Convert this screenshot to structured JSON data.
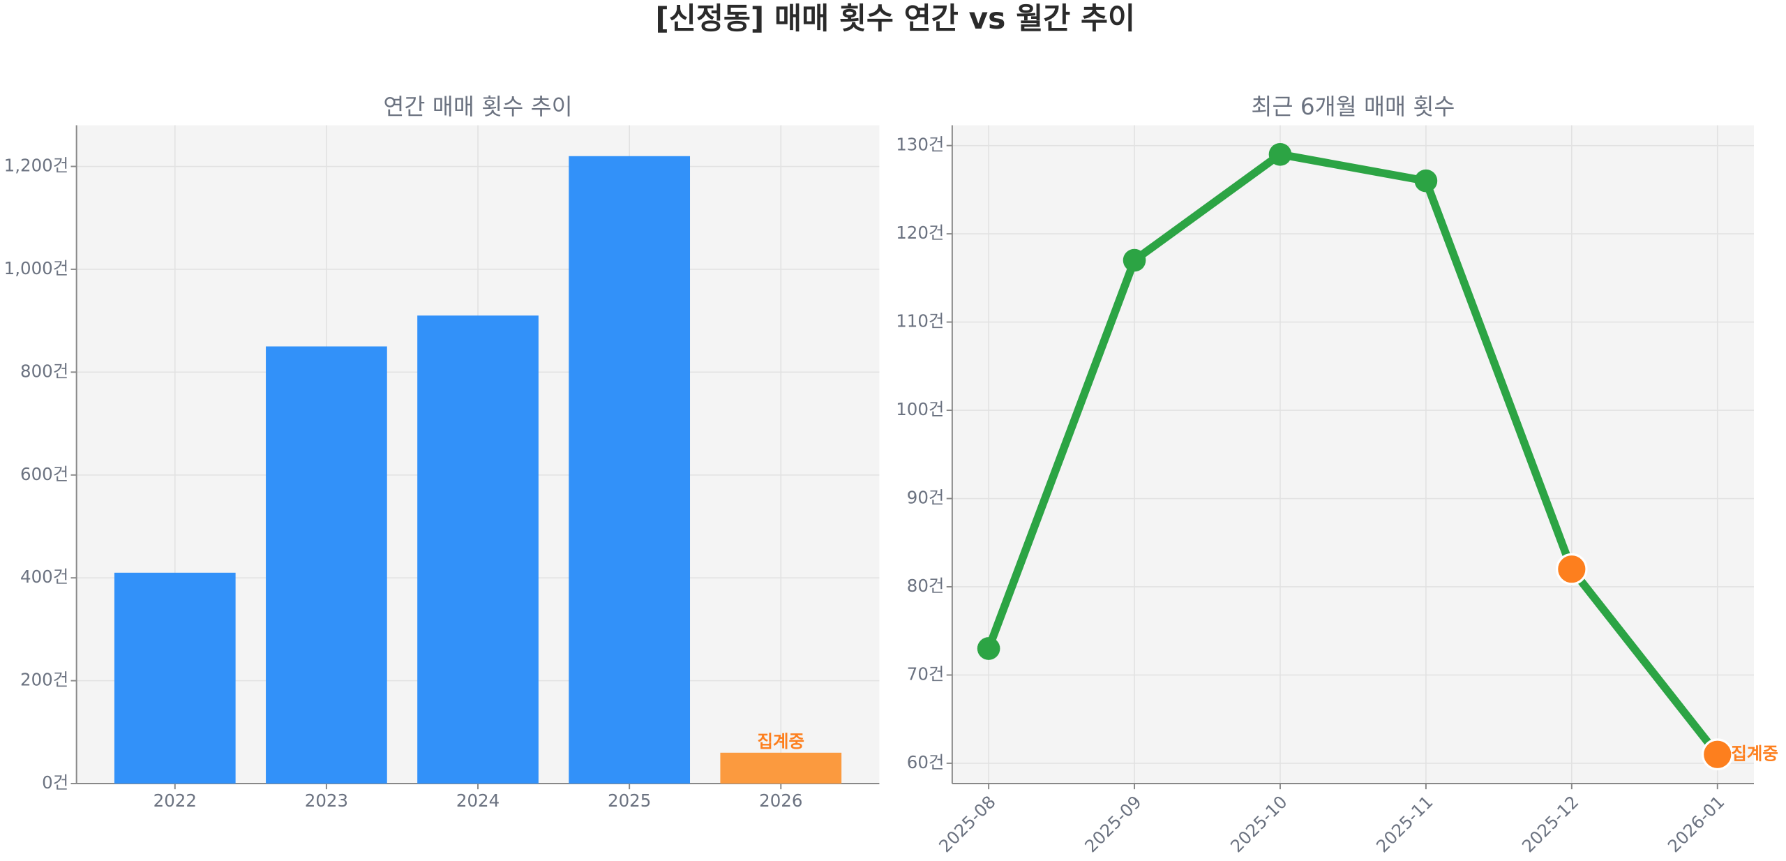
{
  "title": "[신정동] 매매 횟수 연간 vs 월간 추이",
  "chart_data": [
    {
      "type": "bar",
      "title": "연간 매매 횟수 추이",
      "categories": [
        "2022",
        "2023",
        "2024",
        "2025",
        "2026"
      ],
      "values": [
        410,
        850,
        910,
        1220,
        60
      ],
      "colors": [
        "#3291f9",
        "#3291f9",
        "#3291f9",
        "#3291f9",
        "#fb9a3f"
      ],
      "annotation": {
        "text": "집계중",
        "category": "2026",
        "color": "#fd7f1e"
      },
      "ylim": [
        0,
        1280
      ],
      "yticks": [
        {
          "value": 0,
          "label": "0건"
        },
        {
          "value": 200,
          "label": "200건"
        },
        {
          "value": 400,
          "label": "400건"
        },
        {
          "value": 600,
          "label": "600건"
        },
        {
          "value": 800,
          "label": "800건"
        },
        {
          "value": 1000,
          "label": "1,000건"
        },
        {
          "value": 1200,
          "label": "1,200건"
        }
      ],
      "grid": true
    },
    {
      "type": "line",
      "title": "최근 6개월 매매 횟수",
      "categories": [
        "2025-08",
        "2025-09",
        "2025-10",
        "2025-11",
        "2025-12",
        "2026-01"
      ],
      "values": [
        73,
        117,
        129,
        126,
        82,
        61
      ],
      "color": "#2ca444",
      "marker_colors": [
        "#2ca444",
        "#2ca444",
        "#2ca444",
        "#2ca444",
        "#fd7f1e",
        "#fd7f1e"
      ],
      "annotation": {
        "text": "집계중",
        "category": "2026-01",
        "color": "#fd7f1e"
      },
      "ylim": [
        57.7,
        132.3
      ],
      "yticks": [
        {
          "value": 60,
          "label": "60건"
        },
        {
          "value": 70,
          "label": "70건"
        },
        {
          "value": 80,
          "label": "80건"
        },
        {
          "value": 90,
          "label": "90건"
        },
        {
          "value": 100,
          "label": "100건"
        },
        {
          "value": 110,
          "label": "110건"
        },
        {
          "value": 120,
          "label": "120건"
        },
        {
          "value": 130,
          "label": "130건"
        }
      ],
      "grid": true
    }
  ]
}
